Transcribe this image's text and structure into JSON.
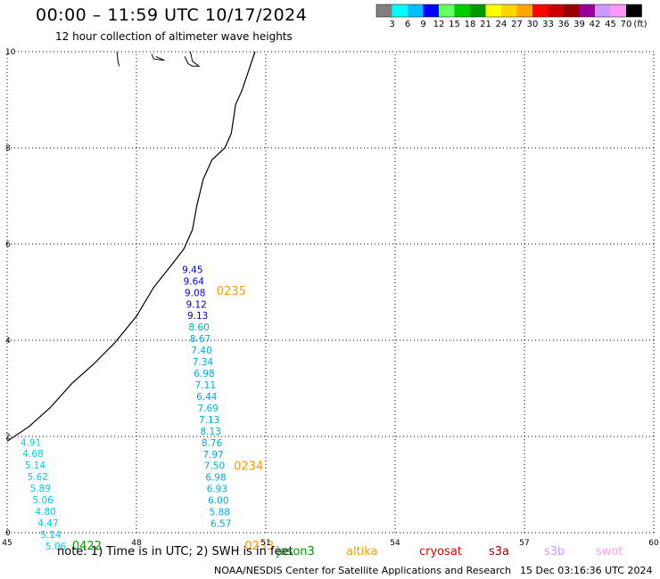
{
  "header": {
    "title": "00:00 – 11:59 UTC 10/17/2024",
    "subtitle": "12 hour collection of altimeter wave heights"
  },
  "colorbar": {
    "labels": [
      "3",
      "6",
      "9",
      "12",
      "15",
      "18",
      "21",
      "24",
      "27",
      "30",
      "33",
      "36",
      "39",
      "42",
      "45",
      "70"
    ],
    "unit": "(ft)",
    "colors": [
      "#808080",
      "#00ffff",
      "#00bfff",
      "#0000ff",
      "#66ff66",
      "#00cc00",
      "#009900",
      "#ffff00",
      "#ffd700",
      "#ffa500",
      "#ff0000",
      "#cc0000",
      "#990000",
      "#990099",
      "#cc99ff",
      "#ff99ff",
      "#000000"
    ]
  },
  "map": {
    "lon_range": [
      45,
      60
    ],
    "lat_range": [
      0,
      10
    ],
    "x_ticks": [
      "45",
      "48",
      "51",
      "54",
      "57",
      "60"
    ],
    "y_ticks": [
      "0",
      "2",
      "4",
      "6",
      "8",
      "10"
    ],
    "grid": "dotted",
    "coastline_color": "#000000"
  },
  "observations": [
    {
      "value": "9.45",
      "lon": 49.3,
      "lat": 5.4,
      "color": "#0000cc"
    },
    {
      "value": "9.64",
      "lon": 49.33,
      "lat": 5.16,
      "color": "#0000cc"
    },
    {
      "value": "9.08",
      "lon": 49.36,
      "lat": 4.92,
      "color": "#0000cc"
    },
    {
      "value": "9.12",
      "lon": 49.39,
      "lat": 4.68,
      "color": "#0000cc"
    },
    {
      "value": "9.13",
      "lon": 49.42,
      "lat": 4.44,
      "color": "#0000cc"
    },
    {
      "value": "8.60",
      "lon": 49.45,
      "lat": 4.2,
      "color": "#00aadd"
    },
    {
      "value": "8.67",
      "lon": 49.48,
      "lat": 3.96,
      "color": "#00aadd"
    },
    {
      "value": "7.40",
      "lon": 49.51,
      "lat": 3.72,
      "color": "#00aadd"
    },
    {
      "value": "7.34",
      "lon": 49.54,
      "lat": 3.48,
      "color": "#00aadd"
    },
    {
      "value": "6.98",
      "lon": 49.57,
      "lat": 3.24,
      "color": "#00aadd"
    },
    {
      "value": "7.11",
      "lon": 49.6,
      "lat": 3.0,
      "color": "#00aadd"
    },
    {
      "value": "6.44",
      "lon": 49.63,
      "lat": 2.76,
      "color": "#00aadd"
    },
    {
      "value": "7.69",
      "lon": 49.66,
      "lat": 2.52,
      "color": "#00aadd"
    },
    {
      "value": "7.13",
      "lon": 49.69,
      "lat": 2.28,
      "color": "#00aadd"
    },
    {
      "value": "8.13",
      "lon": 49.72,
      "lat": 2.04,
      "color": "#00aadd"
    },
    {
      "value": "8.76",
      "lon": 49.75,
      "lat": 1.8,
      "color": "#00aadd"
    },
    {
      "value": "7.97",
      "lon": 49.78,
      "lat": 1.56,
      "color": "#00aadd"
    },
    {
      "value": "7.50",
      "lon": 49.81,
      "lat": 1.32,
      "color": "#00aadd"
    },
    {
      "value": "6.98",
      "lon": 49.84,
      "lat": 1.08,
      "color": "#00aadd"
    },
    {
      "value": "6.93",
      "lon": 49.87,
      "lat": 0.84,
      "color": "#00aadd"
    },
    {
      "value": "6.00",
      "lon": 49.9,
      "lat": 0.6,
      "color": "#00aadd"
    },
    {
      "value": "5.88",
      "lon": 49.93,
      "lat": 0.36,
      "color": "#00aadd"
    },
    {
      "value": "6.57",
      "lon": 49.96,
      "lat": 0.12,
      "color": "#00aadd"
    },
    {
      "value": "4.91",
      "lon": 45.55,
      "lat": 1.81,
      "color": "#00ccee"
    },
    {
      "value": "4.68",
      "lon": 45.6,
      "lat": 1.57,
      "color": "#00ccee"
    },
    {
      "value": "5.14",
      "lon": 45.65,
      "lat": 1.33,
      "color": "#00ccee"
    },
    {
      "value": "5.62",
      "lon": 45.71,
      "lat": 1.09,
      "color": "#00ccee"
    },
    {
      "value": "5.89",
      "lon": 45.77,
      "lat": 0.85,
      "color": "#00ccee"
    },
    {
      "value": "5.06",
      "lon": 45.83,
      "lat": 0.61,
      "color": "#00ccee"
    },
    {
      "value": "4.80",
      "lon": 45.89,
      "lat": 0.37,
      "color": "#00ccee"
    },
    {
      "value": "4.47",
      "lon": 45.95,
      "lat": 0.13,
      "color": "#00ccee"
    },
    {
      "value": "5.14",
      "lon": 46.01,
      "lat": -0.11,
      "color": "#00ccee"
    },
    {
      "value": "5.06",
      "lon": 46.13,
      "lat": -0.35,
      "color": "#00ccee"
    }
  ],
  "pass_times": [
    {
      "label": "0235",
      "lon": 50.2,
      "lat": 4.94,
      "color": "#ff9900"
    },
    {
      "label": "0234",
      "lon": 50.6,
      "lat": 1.31,
      "color": "#ff9900"
    },
    {
      "label": "0233",
      "lon": 50.85,
      "lat": -0.35,
      "color": "#ff9900"
    },
    {
      "label": "0422",
      "lon": 46.85,
      "lat": -0.35,
      "color": "#009900"
    }
  ],
  "footer": {
    "note": "note: 1) Time is in UTC; 2) SWH is in feet",
    "missions": [
      {
        "label": "jason3",
        "color": "#009900"
      },
      {
        "label": "altika",
        "color": "#ff9900"
      },
      {
        "label": "cryosat",
        "color": "#dd0000"
      },
      {
        "label": "s3a",
        "color": "#990000"
      },
      {
        "label": "s3b",
        "color": "#cc99ff"
      },
      {
        "label": "swot",
        "color": "#ff99ff"
      }
    ],
    "credit": "NOAA/NESDIS Center for Satellite Applications and Research",
    "generated": "15 Dec 03:16:36 UTC 2024"
  }
}
